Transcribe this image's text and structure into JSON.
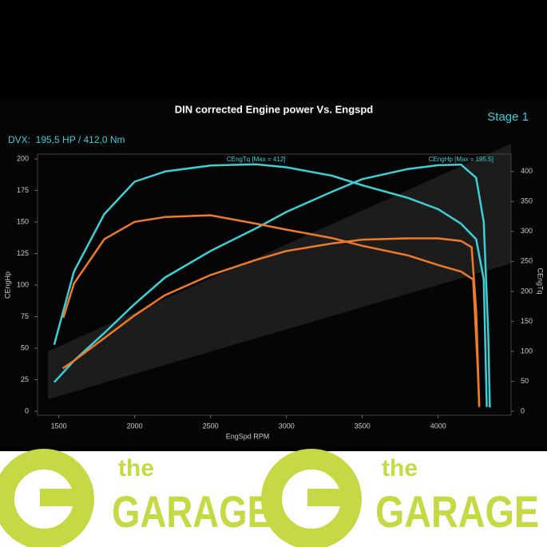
{
  "chart_data": {
    "type": "line",
    "title": "DIN corrected Engine power Vs. Engspd",
    "subtitle": "Stage 1",
    "summary": "DVX:  195,5 HP / 412,0 Nm",
    "xlabel": "EngSpd RPM",
    "ylabel": "CEngHp",
    "y2label": "CEngTq",
    "xlim": [
      1360,
      4480
    ],
    "xticks": [
      1500,
      2000,
      2500,
      3000,
      3500,
      4000
    ],
    "ylim": [
      0,
      200
    ],
    "yticks": [
      0,
      25,
      50,
      75,
      100,
      125,
      150,
      175,
      200
    ],
    "y2lim": [
      0,
      421
    ],
    "y2ticks": [
      0,
      50,
      100,
      150,
      200,
      250,
      300,
      350,
      400
    ],
    "grid": false,
    "series": [
      {
        "name": "CEngHp [Max = 195.5]",
        "color": "#3ccfd6",
        "axis": "y",
        "x": [
          1470,
          1600,
          1800,
          2000,
          2200,
          2500,
          2800,
          3000,
          3300,
          3500,
          3800,
          4000,
          4150,
          4250,
          4300,
          4330,
          4340
        ],
        "values": [
          23,
          40,
          62,
          85,
          106,
          127,
          145,
          158,
          174,
          184,
          192,
          195,
          195.5,
          185,
          150,
          60,
          3
        ]
      },
      {
        "name": "CEngTq [Max = 412]",
        "color": "#3ccfd6",
        "axis": "y2",
        "x": [
          1470,
          1600,
          1800,
          2000,
          2200,
          2500,
          2800,
          3000,
          3300,
          3500,
          3800,
          4000,
          4150,
          4250,
          4300,
          4320
        ],
        "values": [
          111,
          233,
          329,
          383,
          400,
          410,
          412,
          407,
          393,
          377,
          356,
          337,
          313,
          287,
          220,
          7
        ]
      },
      {
        "color": "#ef7a2a",
        "axis": "y",
        "x": [
          1526,
          1600,
          1800,
          2000,
          2200,
          2500,
          2800,
          3000,
          3300,
          3500,
          3800,
          4000,
          4150,
          4220,
          4250,
          4270
        ],
        "values": [
          34,
          40,
          58,
          76,
          92,
          108,
          120,
          127,
          133,
          136,
          137,
          137,
          135,
          130,
          80,
          5
        ]
      },
      {
        "color": "#ef7a2a",
        "axis": "y2",
        "x": [
          1530,
          1600,
          1800,
          2000,
          2200,
          2500,
          2800,
          3000,
          3300,
          3500,
          3800,
          4000,
          4150,
          4230,
          4260,
          4270
        ],
        "values": [
          156,
          213,
          287,
          316,
          324,
          327,
          313,
          303,
          289,
          276,
          260,
          244,
          233,
          220,
          73,
          7
        ]
      }
    ]
  },
  "footer": {
    "logos": [
      {
        "small": "the",
        "big": "GARAGE"
      },
      {
        "small": "the",
        "big": "GARAGE"
      }
    ]
  }
}
